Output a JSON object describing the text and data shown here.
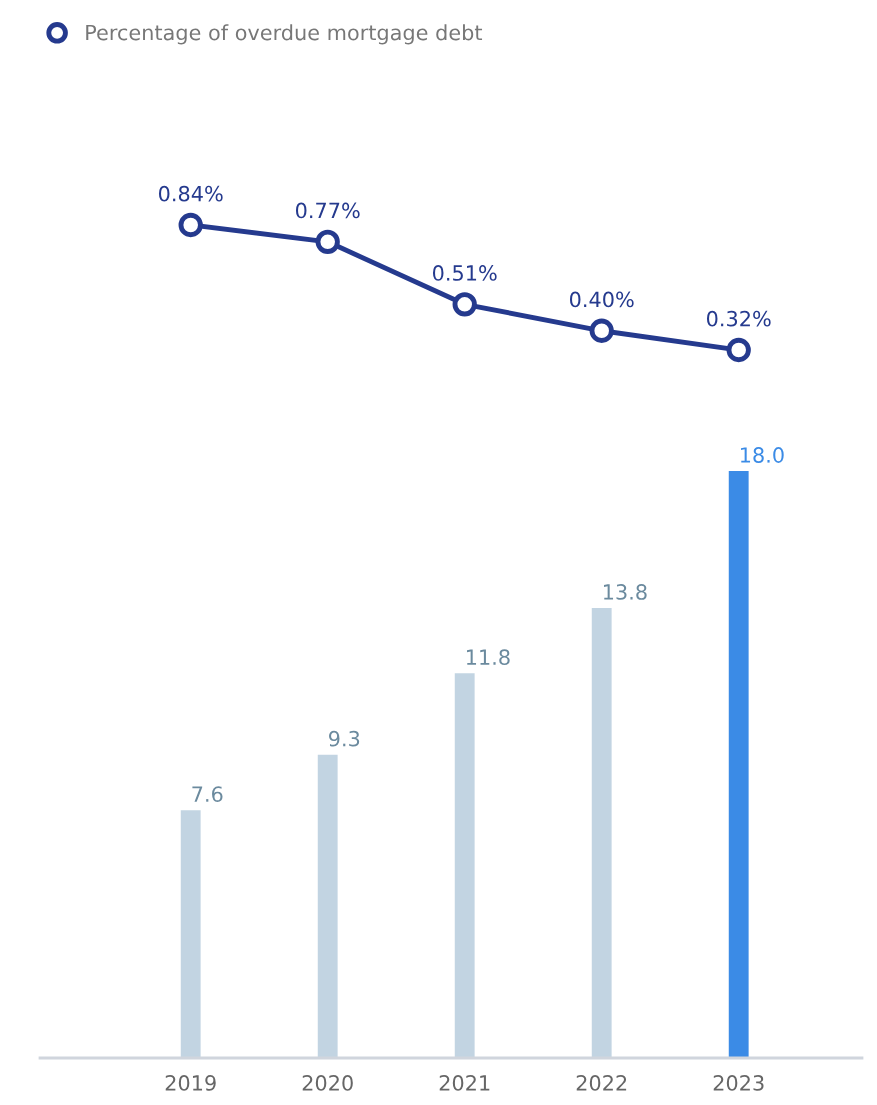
{
  "chart_data": [
    {
      "type": "line",
      "series": [
        {
          "name": "Percentage of overdue mortgage debt",
          "color": "#253a8e",
          "values": [
            0.84,
            0.77,
            0.51,
            0.4,
            0.32
          ],
          "value_labels": [
            "0.84%",
            "0.77%",
            "0.51%",
            "0.40%",
            "0.32%"
          ]
        }
      ],
      "categories": [
        "2019",
        "2020",
        "2021",
        "2022",
        "2023"
      ],
      "marker": "circle",
      "tick_labels": false,
      "grid": false,
      "legend": "top left"
    },
    {
      "type": "bar",
      "categories": [
        "2019",
        "2020",
        "2021",
        "2022",
        "2023"
      ],
      "colors": [
        "#c2d4e2",
        "#c2d4e2",
        "#c2d4e2",
        "#c2d4e2",
        "#3b8be6"
      ],
      "values": [
        7.6,
        9.3,
        11.8,
        13.8,
        18.0
      ],
      "value_labels": [
        "7.6",
        "9.3",
        "11.8",
        "13.8",
        "18.0"
      ],
      "tick_labels": "x",
      "grid": false
    }
  ]
}
